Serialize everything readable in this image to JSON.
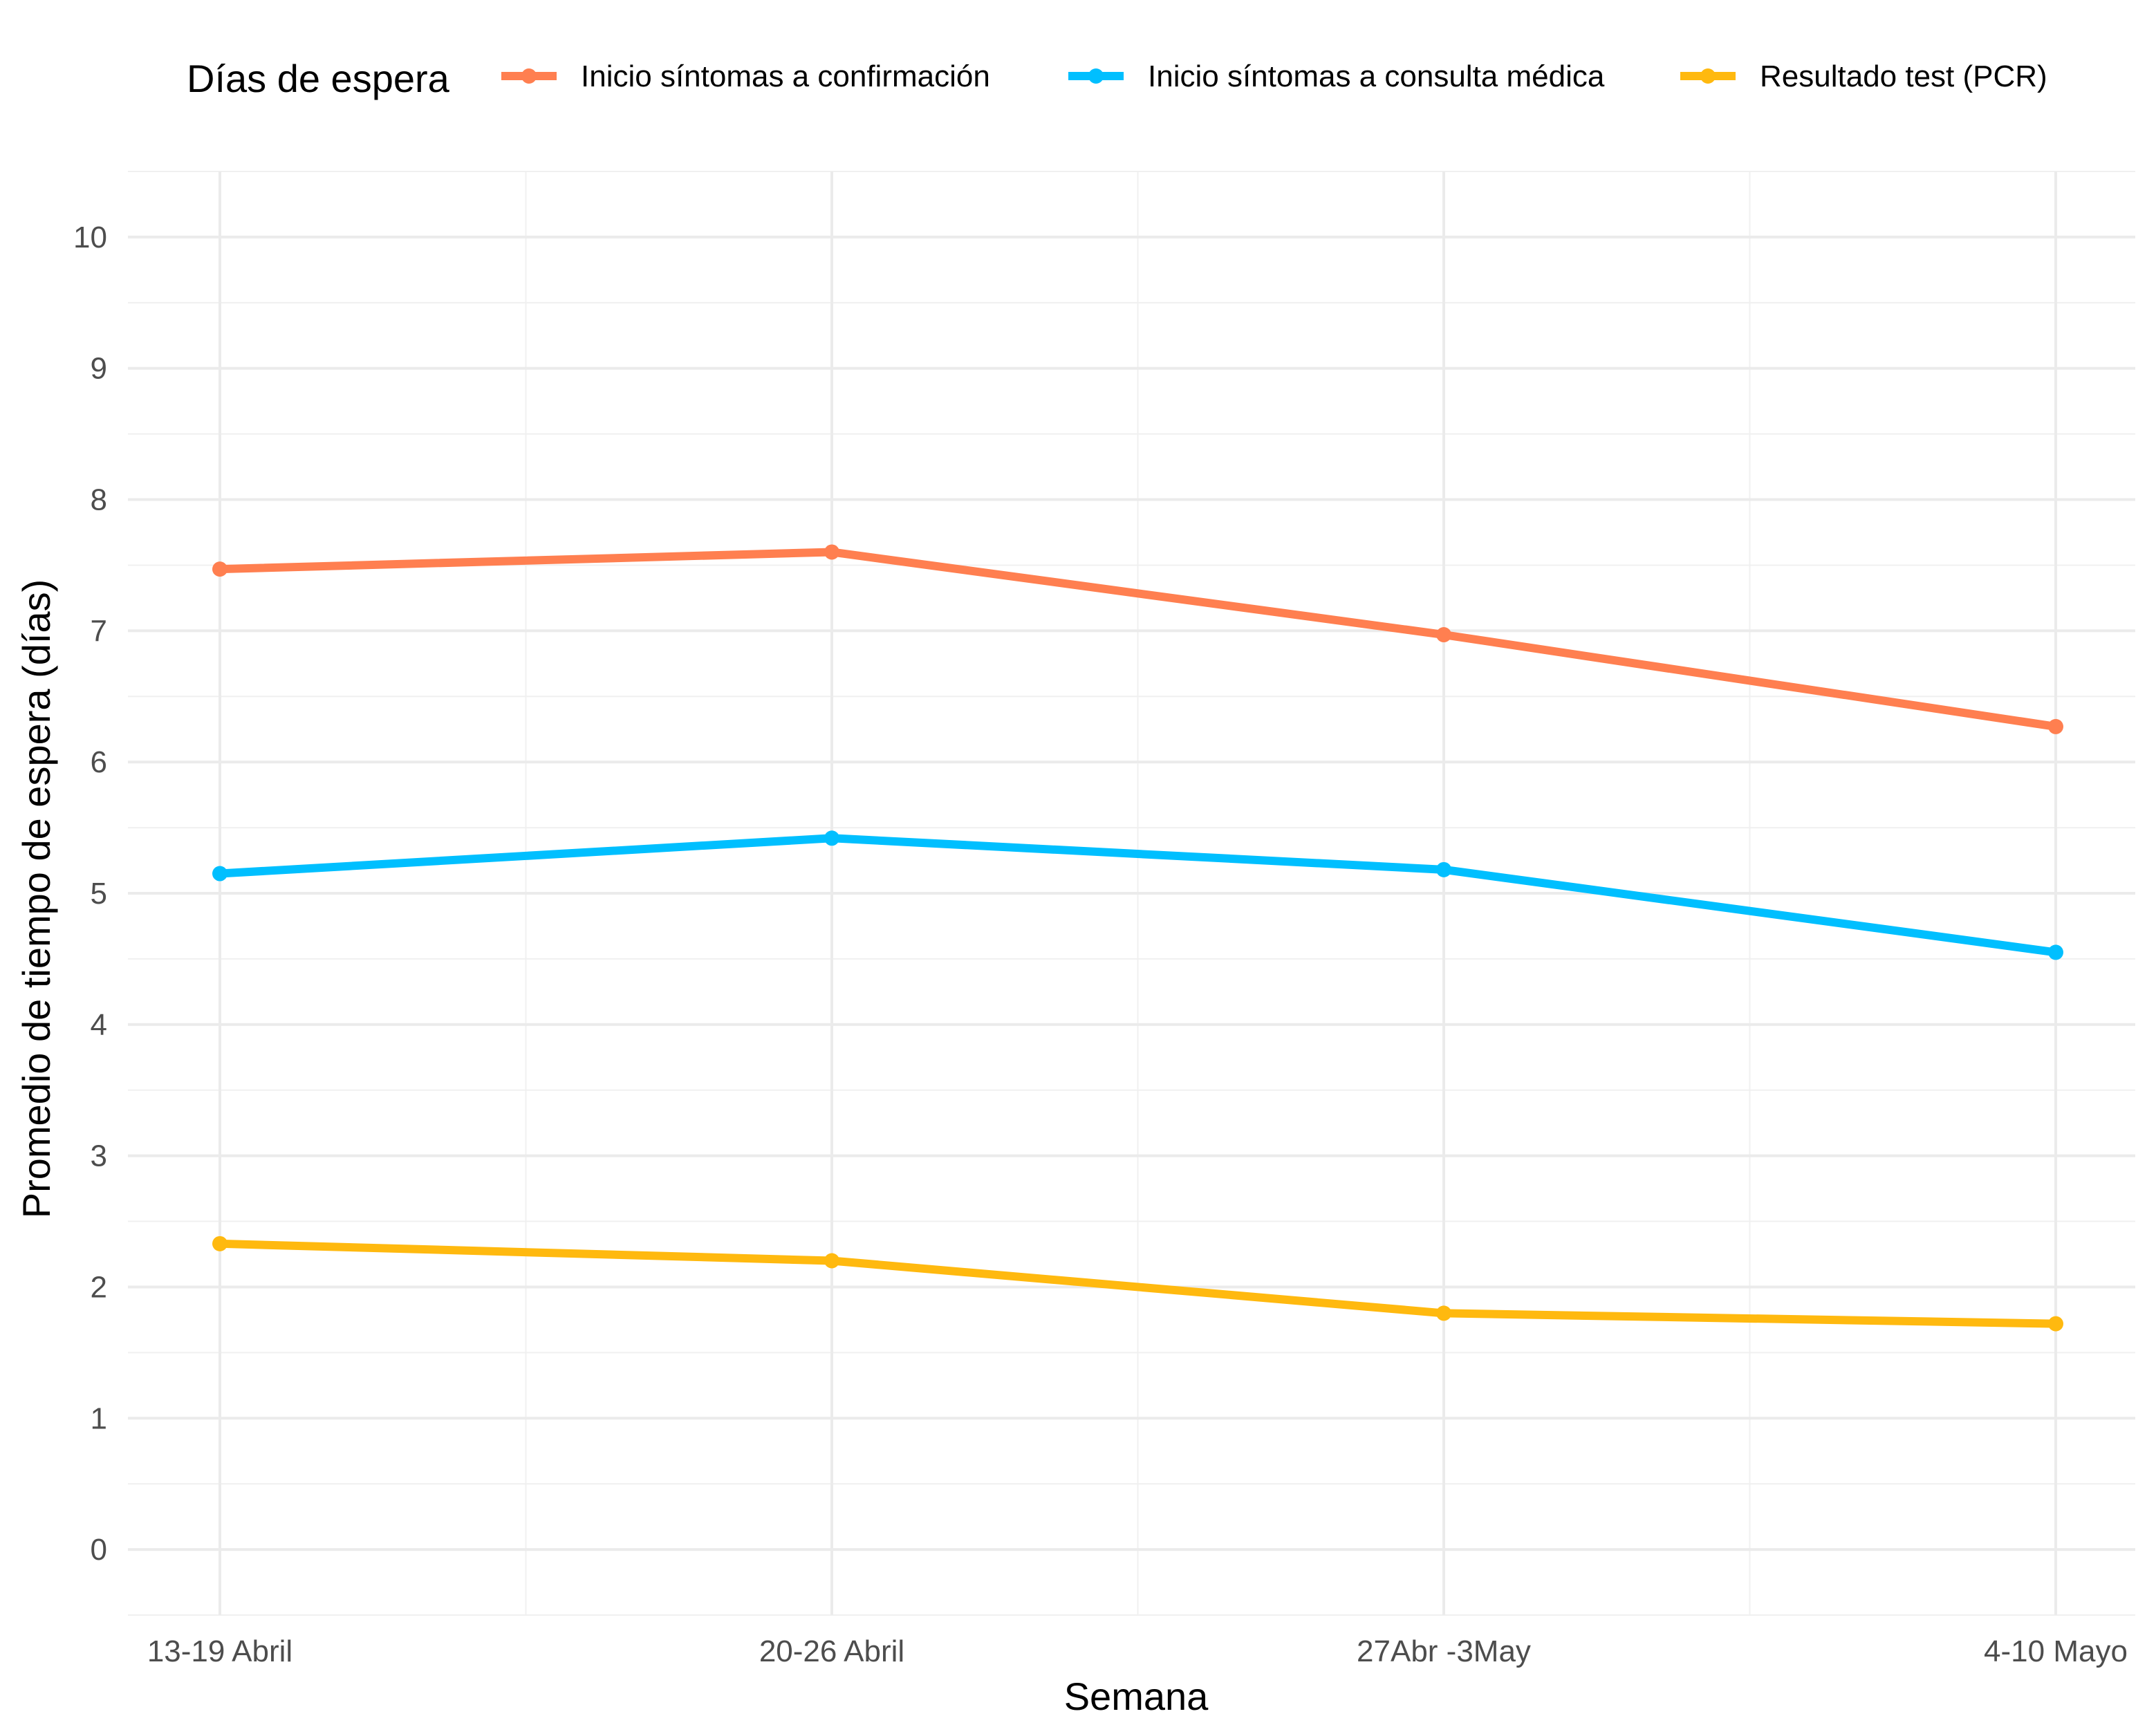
{
  "chart_data": {
    "type": "line",
    "title": "",
    "xlabel": "Semana",
    "ylabel": "Promedio de tiempo de espera (días)",
    "categories": [
      "13-19 Abril",
      "20-26 Abril",
      "27Abr -3May",
      "4-10 Mayo"
    ],
    "ylim": [
      -0.5,
      10.5
    ],
    "yticks": [
      0,
      1,
      2,
      3,
      4,
      5,
      6,
      7,
      8,
      9,
      10
    ],
    "grid": true,
    "legend": {
      "title": "Días de espera",
      "position": "top"
    },
    "series": [
      {
        "name": "Inicio síntomas a confirmación",
        "color": "#FF7F50",
        "values": [
          7.47,
          7.6,
          6.97,
          6.27
        ]
      },
      {
        "name": "Inicio síntomas a consulta médica",
        "color": "#00BFFF",
        "values": [
          5.15,
          5.42,
          5.18,
          4.55
        ]
      },
      {
        "name": "Resultado test (PCR)",
        "color": "#FFB90F",
        "values": [
          2.33,
          2.2,
          1.8,
          1.72
        ]
      }
    ]
  }
}
